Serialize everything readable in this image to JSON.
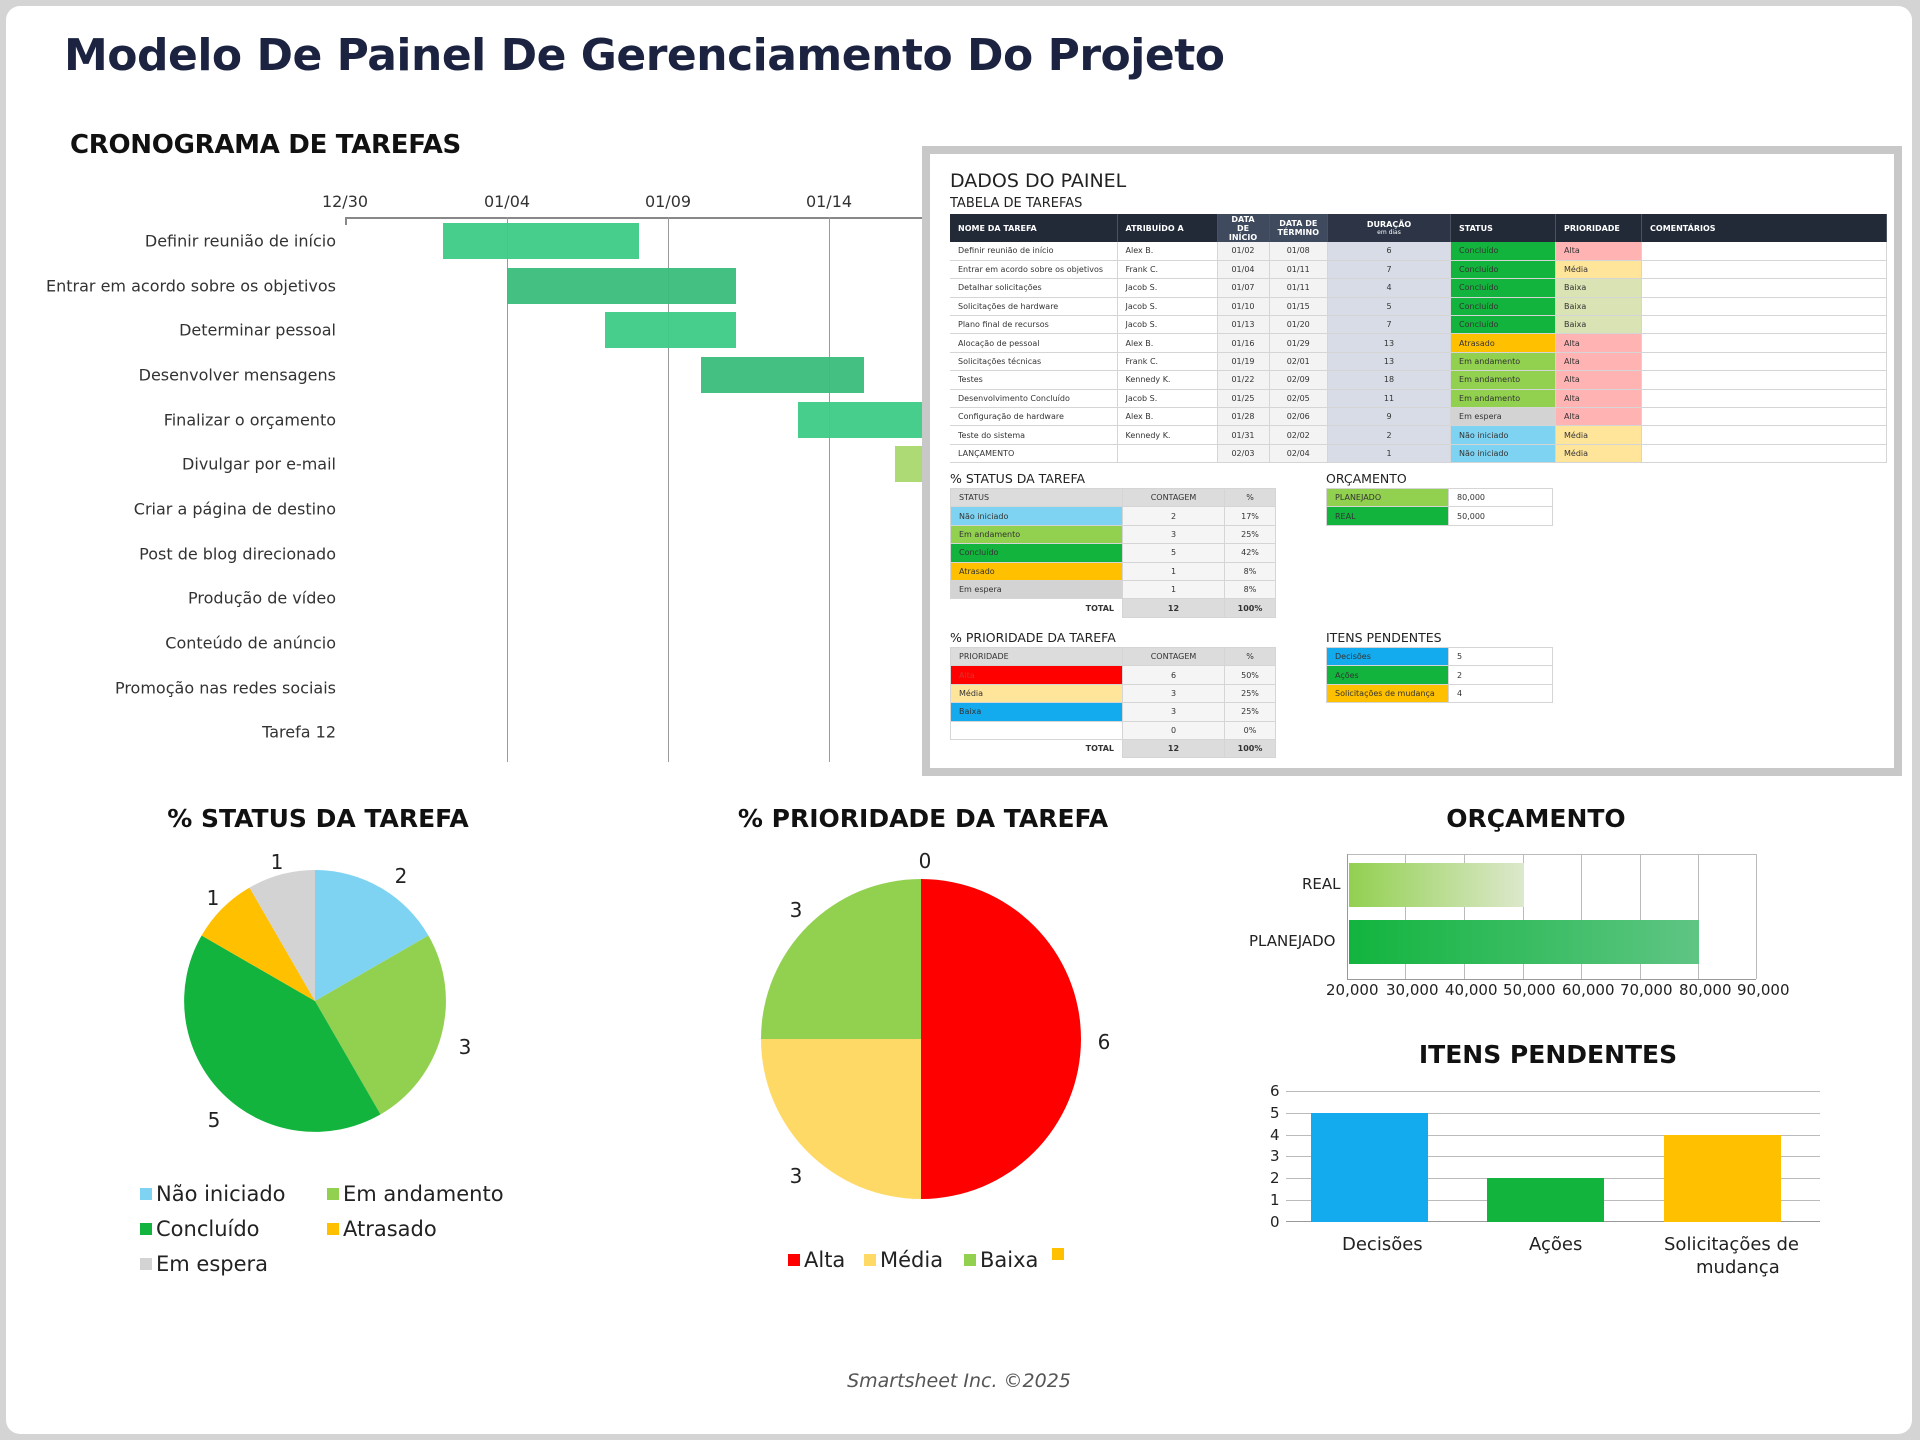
{
  "header": {
    "title": "Modelo De Painel De Gerenciamento Do Projeto"
  },
  "gantt": {
    "title": "CRONOGRAMA DE TAREFAS",
    "ticks": [
      "12/30",
      "01/04",
      "01/09",
      "01/14"
    ],
    "tasks": [
      "Definir reunião de início",
      "Entrar em acordo sobre os objetivos",
      "Determinar pessoal",
      "Desenvolver mensagens",
      "Finalizar o orçamento",
      "Divulgar por e-mail",
      "Criar a página de destino",
      "Post de blog direcionado",
      "Produção de vídeo",
      "Conteúdo de anúncio",
      "Promoção nas redes sociais",
      "Tarefa 12"
    ]
  },
  "panel": {
    "title": "DADOS DO PAINEL",
    "task_table": {
      "title": "TABELA DE TAREFAS",
      "headers": {
        "name": "NOME DA TAREFA",
        "assigned": "ATRIBUÍDO A",
        "start": "DATA DE INÍCIO",
        "end": "DATA DE TÉRMINO",
        "duration": "DURAÇÃO",
        "duration_unit": "em dias",
        "status": "STATUS",
        "priority": "PRIORIDADE",
        "comments": "COMENTÁRIOS"
      },
      "rows": [
        {
          "name": "Definir reunião de início",
          "assigned": "Alex B.",
          "start": "01/02",
          "end": "01/08",
          "duration": "6",
          "status": "Concluído",
          "priority": "Alta",
          "comments": ""
        },
        {
          "name": "Entrar em acordo sobre os objetivos",
          "assigned": "Frank C.",
          "start": "01/04",
          "end": "01/11",
          "duration": "7",
          "status": "Concluído",
          "priority": "Média",
          "comments": ""
        },
        {
          "name": "Detalhar solicitações",
          "assigned": "Jacob S.",
          "start": "01/07",
          "end": "01/11",
          "duration": "4",
          "status": "Concluído",
          "priority": "Baixa",
          "comments": ""
        },
        {
          "name": "Solicitações de hardware",
          "assigned": "Jacob S.",
          "start": "01/10",
          "end": "01/15",
          "duration": "5",
          "status": "Concluído",
          "priority": "Baixa",
          "comments": ""
        },
        {
          "name": "Plano final de recursos",
          "assigned": "Jacob S.",
          "start": "01/13",
          "end": "01/20",
          "duration": "7",
          "status": "Concluído",
          "priority": "Baixa",
          "comments": ""
        },
        {
          "name": "Alocação de pessoal",
          "assigned": "Alex B.",
          "start": "01/16",
          "end": "01/29",
          "duration": "13",
          "status": "Atrasado",
          "priority": "Alta",
          "comments": ""
        },
        {
          "name": "Solicitações técnicas",
          "assigned": "Frank C.",
          "start": "01/19",
          "end": "02/01",
          "duration": "13",
          "status": "Em andamento",
          "priority": "Alta",
          "comments": ""
        },
        {
          "name": "Testes",
          "assigned": "Kennedy K.",
          "start": "01/22",
          "end": "02/09",
          "duration": "18",
          "status": "Em andamento",
          "priority": "Alta",
          "comments": ""
        },
        {
          "name": "Desenvolvimento Concluído",
          "assigned": "Jacob S.",
          "start": "01/25",
          "end": "02/05",
          "duration": "11",
          "status": "Em andamento",
          "priority": "Alta",
          "comments": ""
        },
        {
          "name": "Configuração de hardware",
          "assigned": "Alex B.",
          "start": "01/28",
          "end": "02/06",
          "duration": "9",
          "status": "Em espera",
          "priority": "Alta",
          "comments": ""
        },
        {
          "name": "Teste do sistema",
          "assigned": "Kennedy K.",
          "start": "01/31",
          "end": "02/02",
          "duration": "2",
          "status": "Não iniciado",
          "priority": "Média",
          "comments": ""
        },
        {
          "name": "LANÇAMENTO",
          "assigned": "",
          "start": "02/03",
          "end": "02/04",
          "duration": "1",
          "status": "Não iniciado",
          "priority": "Média",
          "comments": ""
        }
      ]
    },
    "status_table": {
      "title": "% STATUS DA TAREFA",
      "headers": [
        "STATUS",
        "CONTAGEM",
        "%"
      ],
      "rows": [
        {
          "label": "Não iniciado",
          "count": "2",
          "pct": "17%"
        },
        {
          "label": "Em andamento",
          "count": "3",
          "pct": "25%"
        },
        {
          "label": "Concluído",
          "count": "5",
          "pct": "42%"
        },
        {
          "label": "Atrasado",
          "count": "1",
          "pct": "8%"
        },
        {
          "label": "Em espera",
          "count": "1",
          "pct": "8%"
        }
      ],
      "total_label": "TOTAL",
      "total_count": "12",
      "total_pct": "100%"
    },
    "priority_table": {
      "title": "% PRIORIDADE DA TAREFA",
      "headers": [
        "PRIORIDADE",
        "CONTAGEM",
        "%"
      ],
      "rows": [
        {
          "label": "Alta",
          "count": "6",
          "pct": "50%"
        },
        {
          "label": "Média",
          "count": "3",
          "pct": "25%"
        },
        {
          "label": "Baixa",
          "count": "3",
          "pct": "25%"
        },
        {
          "label": "",
          "count": "0",
          "pct": "0%"
        }
      ],
      "total_label": "TOTAL",
      "total_count": "12",
      "total_pct": "100%"
    },
    "budget_table": {
      "title": "ORÇAMENTO",
      "rows": [
        {
          "label": "PLANEJADO",
          "value": "80,000"
        },
        {
          "label": "REAL",
          "value": "50,000"
        }
      ]
    },
    "pending_table": {
      "title": "ITENS PENDENTES",
      "rows": [
        {
          "label": "Decisões",
          "value": "5"
        },
        {
          "label": "Ações",
          "value": "2"
        },
        {
          "label": "Solicitações de mudança",
          "value": "4"
        }
      ]
    }
  },
  "colors": {
    "nao_iniciado": "#7fd3f2",
    "em_andamento": "#92d050",
    "concluido": "#12b43e",
    "atrasado": "#ffc000",
    "em_espera": "#d3d3d3",
    "alta": "#ff0000",
    "alta_light": "#ffb3b3",
    "media": "#ffd966",
    "media_light": "#ffe59a",
    "baixa": "#92d050",
    "baixa_light": "#d9e3b4",
    "baixa_table": "#13aaee",
    "gantt_bar": "#3ecb86",
    "header_dark": "#1b2340"
  },
  "chart_data": [
    {
      "type": "pie",
      "title": "% STATUS DA TAREFA",
      "categories": [
        "Não iniciado",
        "Em andamento",
        "Concluído",
        "Atrasado",
        "Em espera"
      ],
      "values": [
        2,
        3,
        5,
        1,
        1
      ],
      "legend_position": "bottom"
    },
    {
      "type": "pie",
      "title": "% PRIORIDADE DA TAREFA",
      "categories": [
        "Alta",
        "Média",
        "Baixa",
        ""
      ],
      "values": [
        6,
        3,
        3,
        0
      ],
      "legend_position": "bottom"
    },
    {
      "type": "bar",
      "orientation": "horizontal",
      "title": "ORÇAMENTO",
      "categories": [
        "REAL",
        "PLANEJADO"
      ],
      "values": [
        50000,
        80000
      ],
      "xlim": [
        20000,
        90000
      ],
      "xticks": [
        "20,000",
        "30,000",
        "40,000",
        "50,000",
        "60,000",
        "70,000",
        "80,000",
        "90,000"
      ],
      "grid": true
    },
    {
      "type": "bar",
      "title": "ITENS PENDENTES",
      "categories": [
        "Decisões",
        "Ações",
        "Solicitações de mudança"
      ],
      "values": [
        5,
        2,
        4
      ],
      "ylim": [
        0,
        6
      ],
      "yticks": [
        "0",
        "1",
        "2",
        "3",
        "4",
        "5",
        "6"
      ],
      "grid": true
    }
  ],
  "charts": {
    "status": {
      "title": "% STATUS DA TAREFA",
      "labels": [
        "2",
        "3",
        "5",
        "1",
        "1"
      ],
      "legend": [
        "Não iniciado",
        "Em andamento",
        "Concluído",
        "Atrasado",
        "Em espera"
      ]
    },
    "priority": {
      "title": "% PRIORIDADE DA TAREFA",
      "labels": [
        "6",
        "3",
        "3",
        "0"
      ],
      "legend": [
        "Alta",
        "Média",
        "Baixa",
        ""
      ]
    },
    "budget": {
      "title": "ORÇAMENTO",
      "categories": [
        "REAL",
        "PLANEJADO"
      ],
      "ticks": [
        "20,000",
        "30,000",
        "40,000",
        "50,000",
        "60,000",
        "70,000",
        "80,000",
        "90,000"
      ]
    },
    "pending": {
      "title": "ITENS PENDENTES",
      "categories": [
        "Decisões",
        "Ações",
        "Solicitações de",
        "mudança"
      ],
      "ticks": [
        "0",
        "1",
        "2",
        "3",
        "4",
        "5",
        "6"
      ]
    }
  },
  "footer": {
    "text": "Smartsheet Inc. ©2025"
  }
}
